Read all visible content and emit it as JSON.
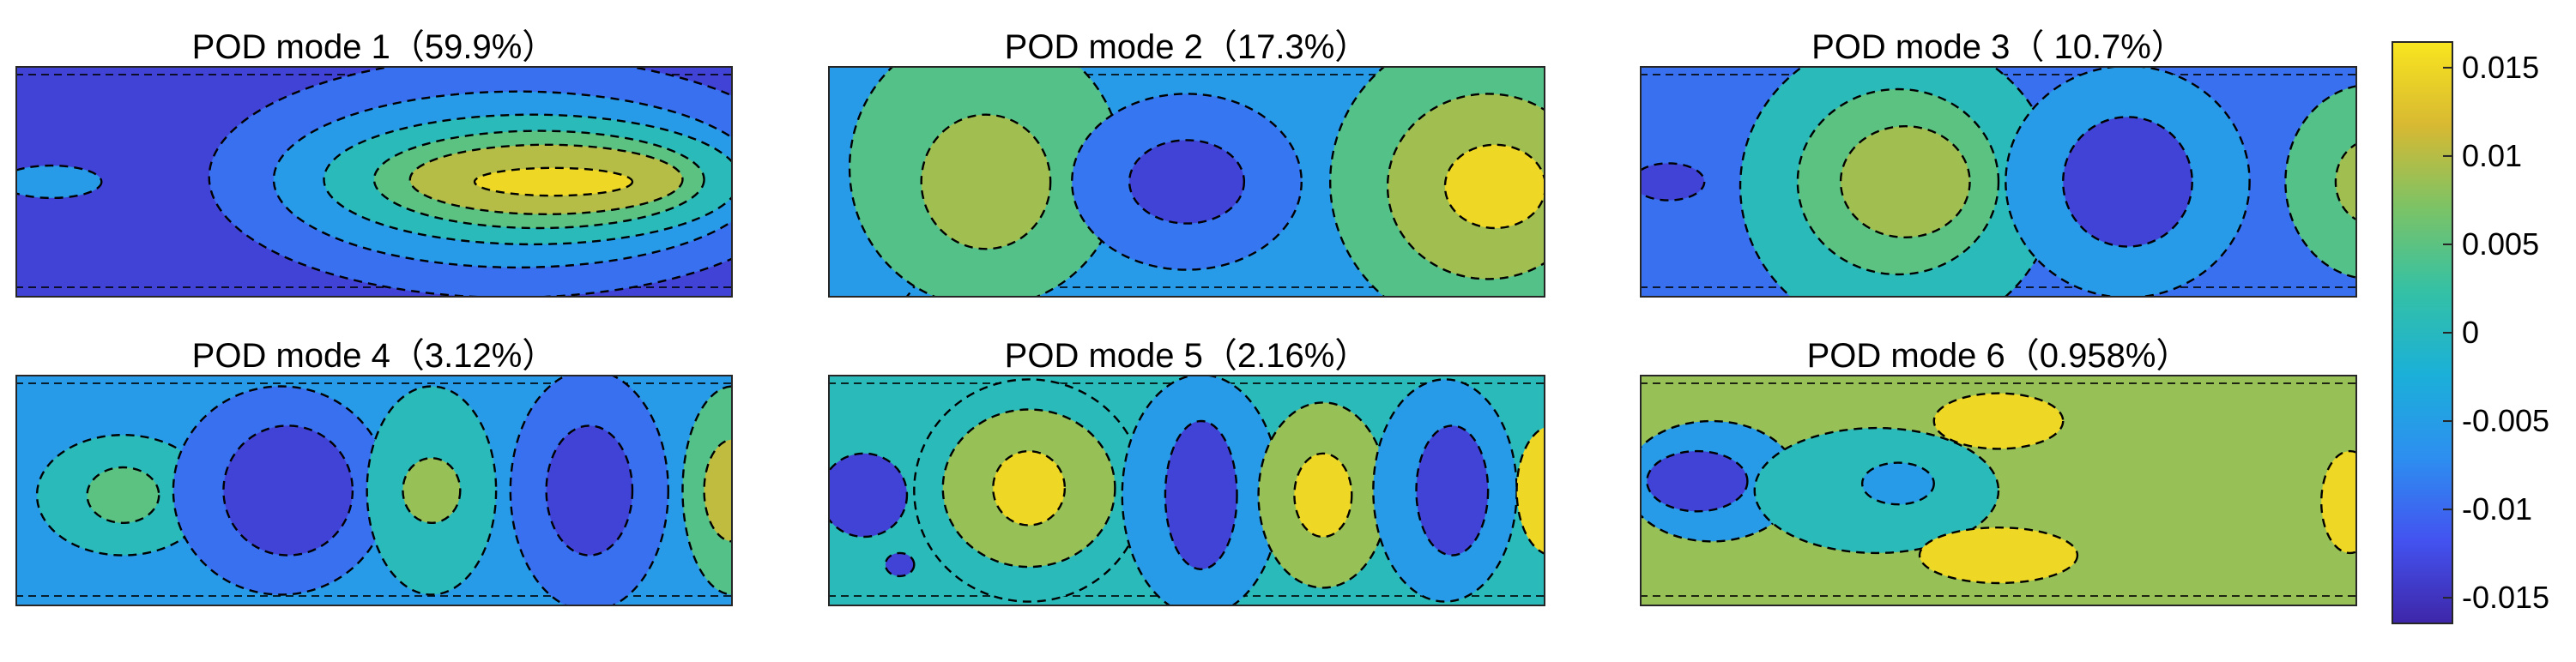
{
  "chart_data": [
    {
      "type": "heatmap",
      "title": "POD mode 1（59.9%）",
      "blobs": [
        {
          "cx": 0.69,
          "cy": 0.48,
          "rx": 0.42,
          "ry": 0.52,
          "level": -0.0095
        },
        {
          "cx": 0.7,
          "cy": 0.49,
          "rx": 0.34,
          "ry": 0.38,
          "level": -0.0055
        },
        {
          "cx": 0.72,
          "cy": 0.49,
          "rx": 0.29,
          "ry": 0.28,
          "level": 0.0005
        },
        {
          "cx": 0.73,
          "cy": 0.49,
          "rx": 0.23,
          "ry": 0.21,
          "level": 0.005
        },
        {
          "cx": 0.74,
          "cy": 0.49,
          "rx": 0.19,
          "ry": 0.15,
          "level": 0.01
        },
        {
          "cx": 0.75,
          "cy": 0.5,
          "rx": 0.11,
          "ry": 0.06,
          "level": 0.015
        },
        {
          "cx": 0.05,
          "cy": 0.5,
          "rx": 0.07,
          "ry": 0.07,
          "level": -0.0055
        }
      ],
      "fill_level": -0.0135
    },
    {
      "type": "heatmap",
      "title": "POD mode 2（17.3%）",
      "blobs": [
        {
          "cx": 0.05,
          "cy": 0.32,
          "rx": 0.12,
          "ry": 0.78,
          "level": -0.0055
        },
        {
          "cx": 0.22,
          "cy": 0.44,
          "rx": 0.19,
          "ry": 0.6,
          "level": 0.0045
        },
        {
          "cx": 0.22,
          "cy": 0.5,
          "rx": 0.09,
          "ry": 0.29,
          "level": 0.009
        },
        {
          "cx": 0.5,
          "cy": 0.5,
          "rx": 0.16,
          "ry": 0.38,
          "level": -0.009
        },
        {
          "cx": 0.5,
          "cy": 0.5,
          "rx": 0.08,
          "ry": 0.18,
          "level": -0.0135
        },
        {
          "cx": 0.92,
          "cy": 0.5,
          "rx": 0.22,
          "ry": 0.66,
          "level": 0.0045
        },
        {
          "cx": 0.92,
          "cy": 0.52,
          "rx": 0.14,
          "ry": 0.4,
          "level": 0.009
        },
        {
          "cx": 0.93,
          "cy": 0.52,
          "rx": 0.07,
          "ry": 0.18,
          "level": 0.015
        }
      ],
      "fill_level": -0.0055
    },
    {
      "type": "heatmap",
      "title": "POD mode 3（ 10.7%）",
      "blobs": [
        {
          "cx": 0.36,
          "cy": 0.52,
          "rx": 0.22,
          "ry": 0.65,
          "level": 0.0005
        },
        {
          "cx": 0.36,
          "cy": 0.5,
          "rx": 0.14,
          "ry": 0.4,
          "level": 0.005
        },
        {
          "cx": 0.37,
          "cy": 0.5,
          "rx": 0.09,
          "ry": 0.24,
          "level": 0.009
        },
        {
          "cx": 0.68,
          "cy": 0.5,
          "rx": 0.17,
          "ry": 0.5,
          "level": -0.0055
        },
        {
          "cx": 0.68,
          "cy": 0.5,
          "rx": 0.09,
          "ry": 0.28,
          "level": -0.0135
        },
        {
          "cx": 1.02,
          "cy": 0.5,
          "rx": 0.12,
          "ry": 0.42,
          "level": 0.0045
        },
        {
          "cx": 1.02,
          "cy": 0.5,
          "rx": 0.05,
          "ry": 0.18,
          "level": 0.009
        },
        {
          "cx": 0.04,
          "cy": 0.5,
          "rx": 0.05,
          "ry": 0.08,
          "level": -0.0135
        }
      ],
      "fill_level": -0.0095
    },
    {
      "type": "heatmap",
      "title": "POD mode 4（3.12%）",
      "blobs": [
        {
          "cx": 0.15,
          "cy": 0.52,
          "rx": 0.12,
          "ry": 0.26,
          "level": 0.0005
        },
        {
          "cx": 0.15,
          "cy": 0.52,
          "rx": 0.05,
          "ry": 0.12,
          "level": 0.005
        },
        {
          "cx": 0.37,
          "cy": 0.5,
          "rx": 0.15,
          "ry": 0.45,
          "level": -0.0095
        },
        {
          "cx": 0.38,
          "cy": 0.5,
          "rx": 0.09,
          "ry": 0.28,
          "level": -0.0135
        },
        {
          "cx": 0.58,
          "cy": 0.5,
          "rx": 0.09,
          "ry": 0.45,
          "level": 0.0005
        },
        {
          "cx": 0.58,
          "cy": 0.5,
          "rx": 0.04,
          "ry": 0.14,
          "level": 0.0085
        },
        {
          "cx": 0.8,
          "cy": 0.5,
          "rx": 0.11,
          "ry": 0.52,
          "level": -0.0095
        },
        {
          "cx": 0.8,
          "cy": 0.5,
          "rx": 0.06,
          "ry": 0.28,
          "level": -0.0135
        },
        {
          "cx": 1.0,
          "cy": 0.5,
          "rx": 0.07,
          "ry": 0.45,
          "level": 0.0045
        },
        {
          "cx": 1.0,
          "cy": 0.5,
          "rx": 0.04,
          "ry": 0.22,
          "level": 0.0105
        }
      ],
      "fill_level": -0.0055
    },
    {
      "type": "heatmap",
      "title": "POD mode 5（2.16%）",
      "blobs": [
        {
          "cx": 0.28,
          "cy": 0.5,
          "rx": 0.16,
          "ry": 0.48,
          "level": 0.0005
        },
        {
          "cx": 0.28,
          "cy": 0.49,
          "rx": 0.12,
          "ry": 0.34,
          "level": 0.0085
        },
        {
          "cx": 0.28,
          "cy": 0.49,
          "rx": 0.05,
          "ry": 0.16,
          "level": 0.015
        },
        {
          "cx": 0.52,
          "cy": 0.52,
          "rx": 0.11,
          "ry": 0.52,
          "level": -0.0055
        },
        {
          "cx": 0.52,
          "cy": 0.52,
          "rx": 0.05,
          "ry": 0.32,
          "level": -0.0135
        },
        {
          "cx": 0.69,
          "cy": 0.52,
          "rx": 0.09,
          "ry": 0.4,
          "level": 0.0085
        },
        {
          "cx": 0.69,
          "cy": 0.52,
          "rx": 0.04,
          "ry": 0.18,
          "level": 0.015
        },
        {
          "cx": 0.86,
          "cy": 0.5,
          "rx": 0.1,
          "ry": 0.48,
          "level": -0.0055
        },
        {
          "cx": 0.87,
          "cy": 0.5,
          "rx": 0.05,
          "ry": 0.28,
          "level": -0.0135
        },
        {
          "cx": 1.01,
          "cy": 0.5,
          "rx": 0.05,
          "ry": 0.28,
          "level": 0.015
        },
        {
          "cx": 0.05,
          "cy": 0.52,
          "rx": 0.06,
          "ry": 0.18,
          "level": -0.0135
        },
        {
          "cx": 0.1,
          "cy": 0.82,
          "rx": 0.02,
          "ry": 0.05,
          "level": -0.0135
        }
      ],
      "fill_level": 0.0005
    },
    {
      "type": "heatmap",
      "title": "POD mode 6（0.958%）",
      "blobs": [
        {
          "cx": 0.1,
          "cy": 0.46,
          "rx": 0.12,
          "ry": 0.26,
          "level": -0.0055
        },
        {
          "cx": 0.08,
          "cy": 0.46,
          "rx": 0.07,
          "ry": 0.13,
          "level": -0.0135
        },
        {
          "cx": 0.33,
          "cy": 0.5,
          "rx": 0.17,
          "ry": 0.27,
          "level": 0.0005
        },
        {
          "cx": 0.36,
          "cy": 0.47,
          "rx": 0.05,
          "ry": 0.09,
          "level": -0.0055
        },
        {
          "cx": 0.5,
          "cy": 0.2,
          "rx": 0.09,
          "ry": 0.12,
          "level": 0.015
        },
        {
          "cx": 0.5,
          "cy": 0.78,
          "rx": 0.11,
          "ry": 0.12,
          "level": 0.015
        },
        {
          "cx": 0.99,
          "cy": 0.55,
          "rx": 0.04,
          "ry": 0.22,
          "level": 0.015
        }
      ],
      "fill_level": 0.0085
    }
  ],
  "colorbar": {
    "ticks": [
      "0.015",
      "0.01",
      "0.005",
      "0",
      "-0.005",
      "-0.01",
      "-0.015"
    ],
    "values": [
      0.015,
      0.01,
      0.005,
      0,
      -0.005,
      -0.01,
      -0.015
    ],
    "range": [
      -0.0165,
      0.0165
    ],
    "stops": [
      "#3e26a8",
      "#4353f0",
      "#2d8ff0",
      "#1bb0d8",
      "#34c1a5",
      "#7bc366",
      "#d8b932",
      "#f9e51f"
    ]
  }
}
